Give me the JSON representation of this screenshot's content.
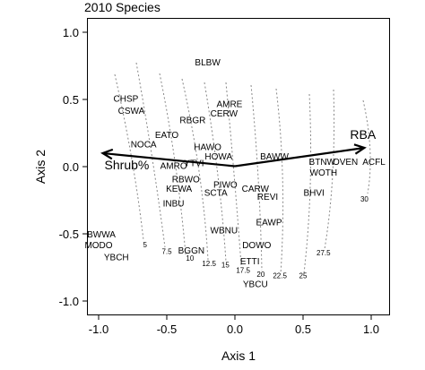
{
  "chart_data": {
    "type": "scatter",
    "title": "2010 Species",
    "xlabel": "Axis 1",
    "ylabel": "Axis 2",
    "xlim": [
      -1.1,
      1.1
    ],
    "ylim": [
      -1.1,
      1.1
    ],
    "xticks": [
      "-1.0",
      "-0.5",
      "0.0",
      "0.5",
      "1.0"
    ],
    "yticks": [
      "-1.0",
      "-0.5",
      "0.0",
      "0.5",
      "1.0"
    ],
    "grid": false,
    "species": [
      {
        "label": "BLBW",
        "x": -0.2,
        "y": 0.78
      },
      {
        "label": "CHSP",
        "x": -0.8,
        "y": 0.51
      },
      {
        "label": "CSWA",
        "x": -0.76,
        "y": 0.42
      },
      {
        "label": "AMRE",
        "x": -0.04,
        "y": 0.47
      },
      {
        "label": "CERW",
        "x": -0.08,
        "y": 0.4
      },
      {
        "label": "RBGR",
        "x": -0.31,
        "y": 0.35
      },
      {
        "label": "EATO",
        "x": -0.5,
        "y": 0.24
      },
      {
        "label": "NOCA",
        "x": -0.67,
        "y": 0.17
      },
      {
        "label": "HAWO",
        "x": -0.2,
        "y": 0.15
      },
      {
        "label": "HOWA",
        "x": -0.12,
        "y": 0.08
      },
      {
        "label": "AMRO",
        "x": -0.45,
        "y": 0.01
      },
      {
        "label": "YTVI",
        "x": -0.3,
        "y": 0.03
      },
      {
        "label": "BAWW",
        "x": 0.29,
        "y": 0.08
      },
      {
        "label": "BTNW",
        "x": 0.64,
        "y": 0.04
      },
      {
        "label": "OVEN",
        "x": 0.81,
        "y": 0.04
      },
      {
        "label": "ACFL",
        "x": 1.02,
        "y": 0.04
      },
      {
        "label": "WOTH",
        "x": 0.65,
        "y": -0.04
      },
      {
        "label": "RBWO",
        "x": -0.36,
        "y": -0.09
      },
      {
        "label": "PIWO",
        "x": -0.07,
        "y": -0.13
      },
      {
        "label": "CARW",
        "x": 0.15,
        "y": -0.16
      },
      {
        "label": "KEWA",
        "x": -0.41,
        "y": -0.16
      },
      {
        "label": "SCTA",
        "x": -0.14,
        "y": -0.19
      },
      {
        "label": "BHVI",
        "x": 0.58,
        "y": -0.19
      },
      {
        "label": "REVI",
        "x": 0.24,
        "y": -0.22
      },
      {
        "label": "INBU",
        "x": -0.45,
        "y": -0.27
      },
      {
        "label": "WBNU",
        "x": -0.08,
        "y": -0.47
      },
      {
        "label": "EAWP",
        "x": 0.25,
        "y": -0.41
      },
      {
        "label": "BWWA",
        "x": -0.98,
        "y": -0.5
      },
      {
        "label": "MODO",
        "x": -1.0,
        "y": -0.58
      },
      {
        "label": "DOWO",
        "x": 0.16,
        "y": -0.58
      },
      {
        "label": "BGGN",
        "x": -0.32,
        "y": -0.62
      },
      {
        "label": "YBCH",
        "x": -0.87,
        "y": -0.67
      },
      {
        "label": "ETTI",
        "x": 0.11,
        "y": -0.7
      },
      {
        "label": "YBCU",
        "x": 0.15,
        "y": -0.87
      }
    ],
    "vectors": [
      {
        "label": "RBA",
        "x": 0.95,
        "y": 0.14
      },
      {
        "label": "Shrub%",
        "x": -0.97,
        "y": 0.1
      }
    ],
    "contour_labels": [
      {
        "label": "5",
        "x": -0.66,
        "y": -0.6
      },
      {
        "label": "7.5",
        "x": -0.5,
        "y": -0.65
      },
      {
        "label": "10",
        "x": -0.33,
        "y": -0.7
      },
      {
        "label": "12.5",
        "x": -0.19,
        "y": -0.74
      },
      {
        "label": "15",
        "x": -0.07,
        "y": -0.75
      },
      {
        "label": "17.5",
        "x": 0.06,
        "y": -0.79
      },
      {
        "label": "20",
        "x": 0.19,
        "y": -0.82
      },
      {
        "label": "22.5",
        "x": 0.33,
        "y": -0.83
      },
      {
        "label": "25",
        "x": 0.5,
        "y": -0.83
      },
      {
        "label": "27.5",
        "x": 0.65,
        "y": -0.66
      },
      {
        "label": "30",
        "x": 0.95,
        "y": -0.26
      }
    ]
  }
}
